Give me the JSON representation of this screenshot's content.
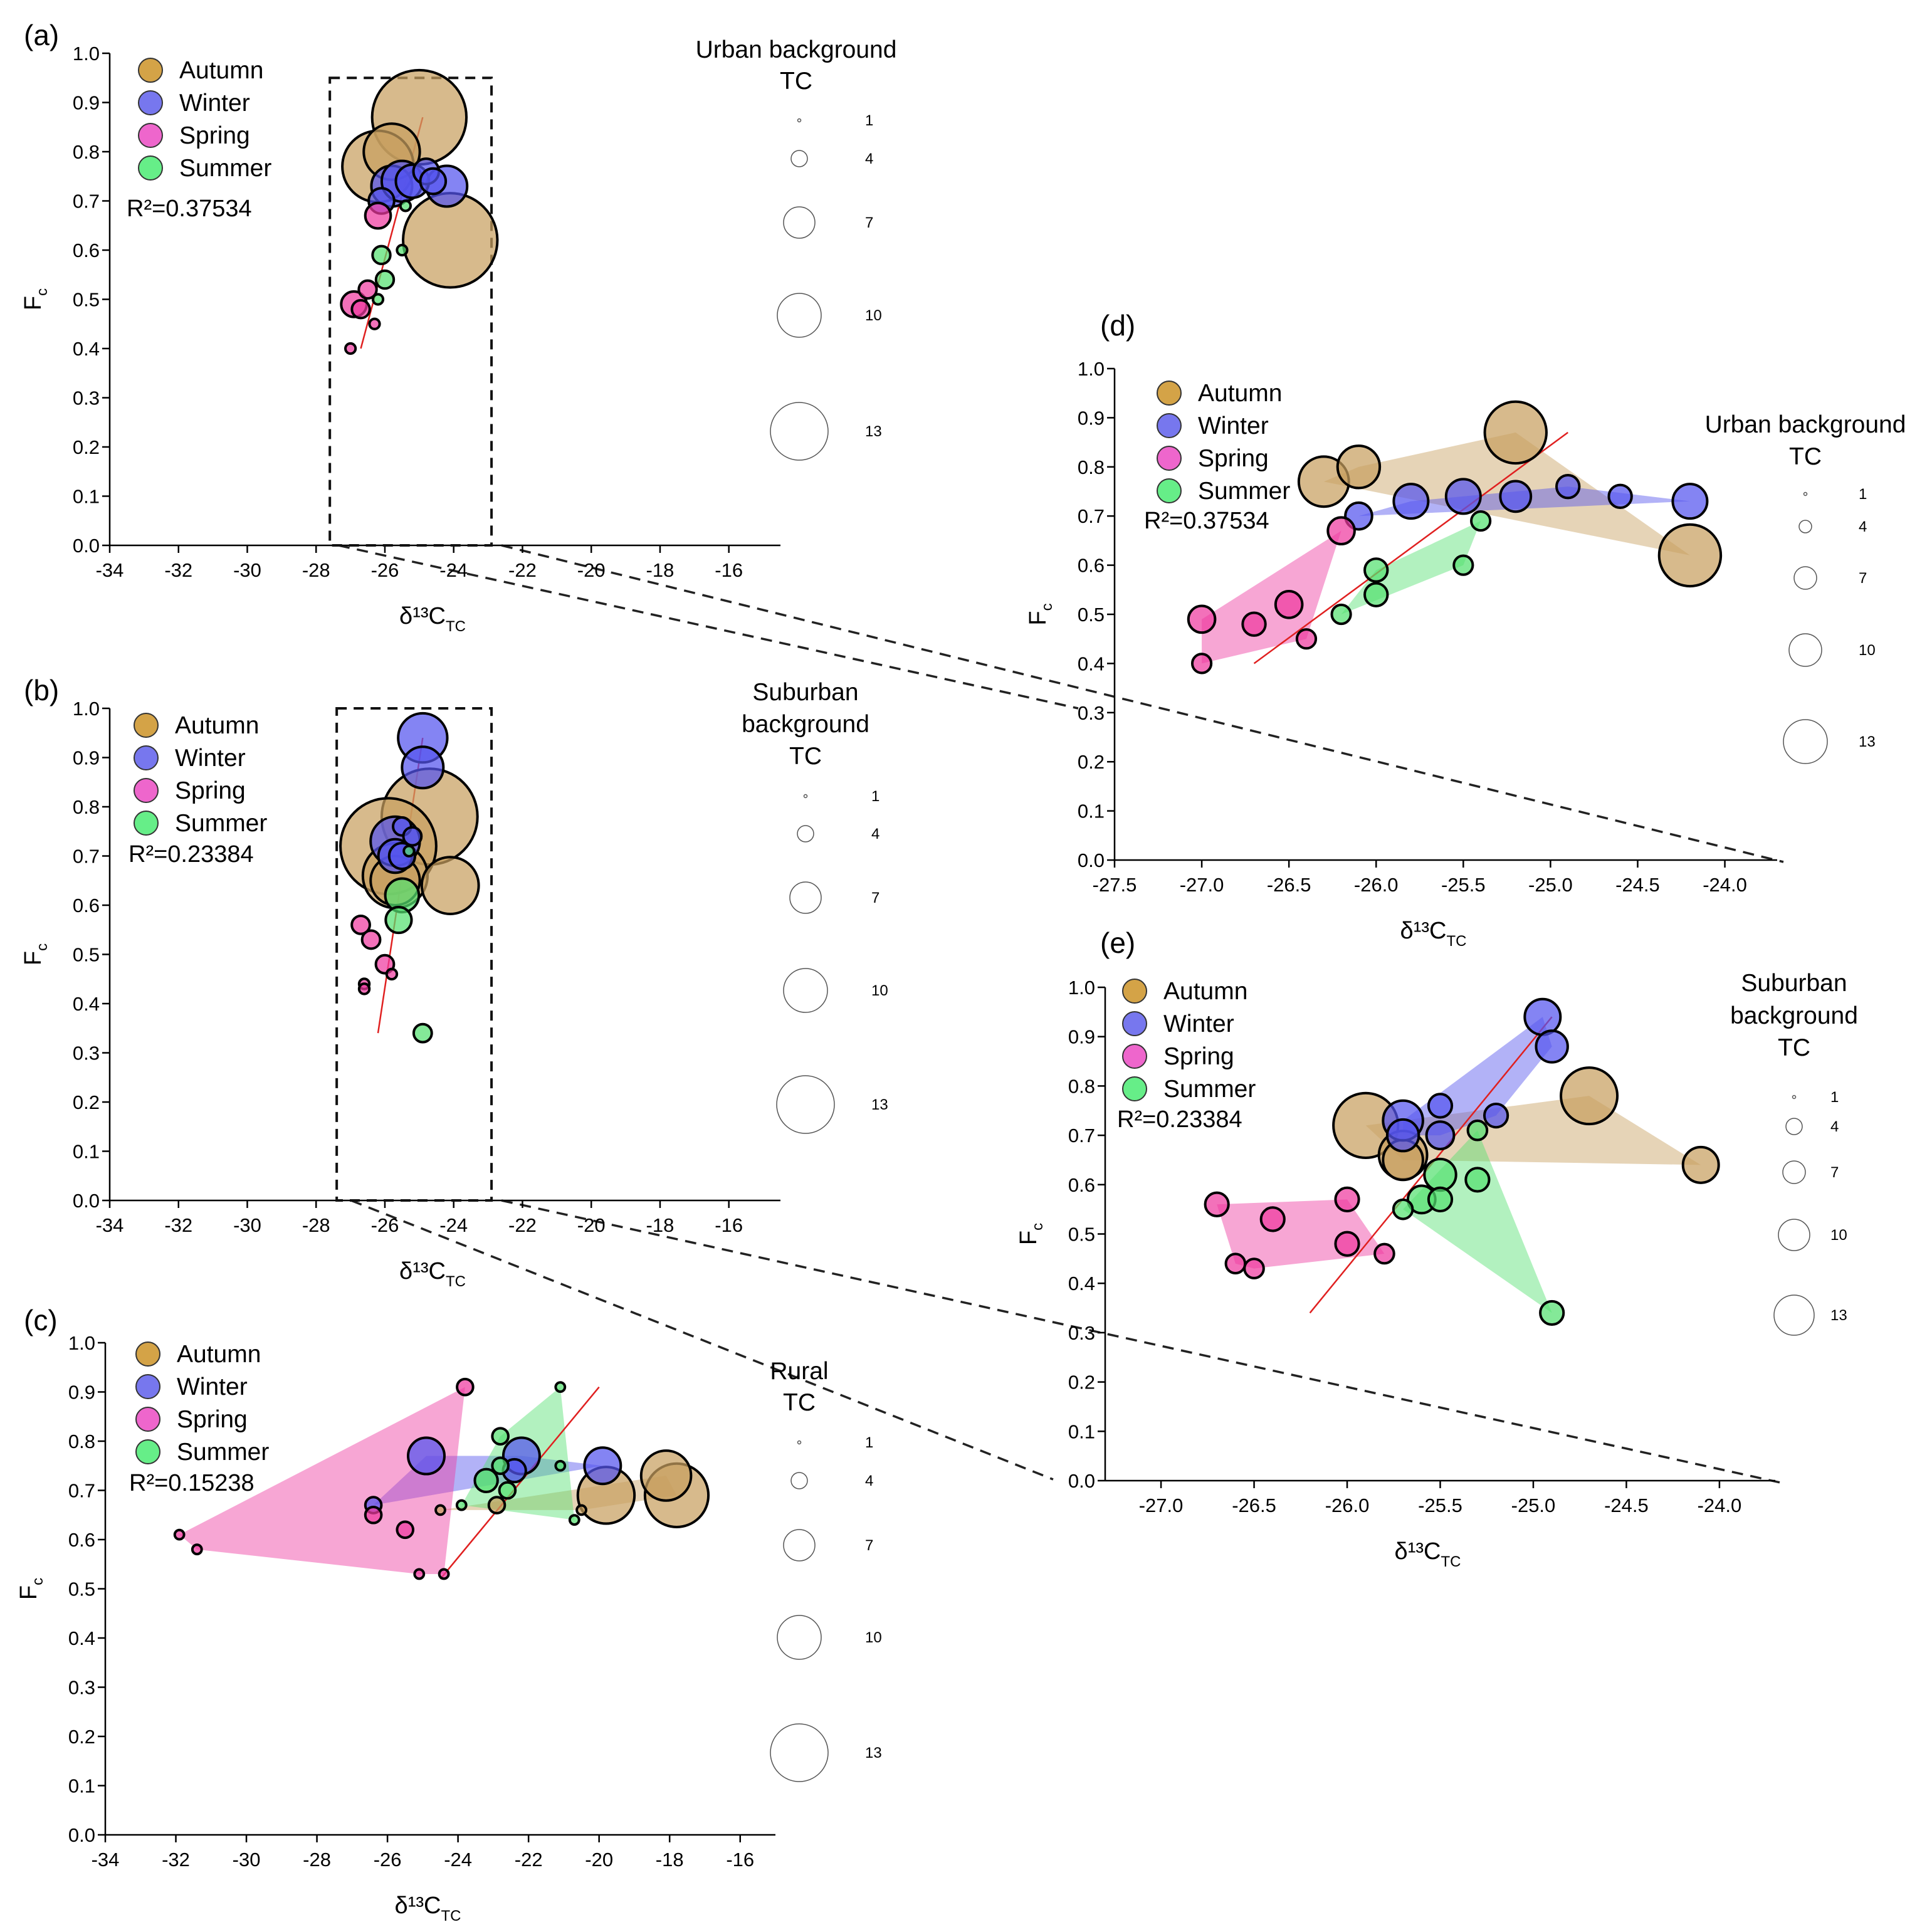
{
  "figure": {
    "panels": [
      {
        "id": "a",
        "label": "(a)",
        "r2_label": "R²=0.37534",
        "size_title": [
          "Urban background",
          "TC"
        ]
      },
      {
        "id": "b",
        "label": "(b)",
        "r2_label": "R²=0.23384",
        "size_title": [
          "Suburban",
          "background",
          "TC"
        ]
      },
      {
        "id": "c",
        "label": "(c)",
        "r2_label": "R²=0.15238",
        "size_title": [
          "Rural",
          "TC"
        ]
      },
      {
        "id": "d",
        "label": "(d)",
        "r2_label": "R²=0.37534",
        "size_title": [
          "Urban background",
          "TC"
        ]
      },
      {
        "id": "e",
        "label": "(e)",
        "r2_label": "R²=0.23384",
        "size_title": [
          "Suburban",
          "background",
          "TC"
        ]
      }
    ],
    "xlabel": "δ¹³C",
    "xlabel_sub": "TC",
    "ylabel": "F",
    "ylabel_sub": "c",
    "size_legend_values": [
      "1",
      "4",
      "7",
      "10",
      "13"
    ],
    "season_colors": {
      "Autumn": "#c8a060",
      "Winter": "#5555ee",
      "Spring": "#ee3aa0",
      "Summer": "#55e070"
    },
    "legend_fill_colors": {
      "Autumn": "#d4a347",
      "Winter": "#7777ee",
      "Spring": "#ee66cc",
      "Summer": "#66ee88"
    },
    "trend_color": "#e02020"
  },
  "chart_data": [
    {
      "panel": "a",
      "type": "scatter",
      "title": "",
      "xlabel": "δ13C TC",
      "ylabel": "Fc",
      "xlim": [
        -34,
        -14.5
      ],
      "ylim": [
        0,
        1.0
      ],
      "xticks": [
        -34,
        -32,
        -30,
        -28,
        -26,
        -24,
        -22,
        -20,
        -18,
        -16
      ],
      "yticks": [
        0.0,
        0.1,
        0.2,
        0.3,
        0.4,
        0.5,
        0.6,
        0.7,
        0.8,
        0.9,
        1.0
      ],
      "r2": 0.37534,
      "trend": [
        [
          -26.7,
          0.4
        ],
        [
          -24.9,
          0.87
        ]
      ],
      "zoom_box": {
        "x": [
          -27.6,
          -22.9
        ],
        "y": [
          0,
          0.95
        ]
      },
      "series": [
        {
          "name": "Autumn",
          "points": [
            [
              -25.0,
              0.87,
              12
            ],
            [
              -26.2,
              0.77,
              9
            ],
            [
              -25.8,
              0.8,
              7
            ],
            [
              -24.1,
              0.62,
              12
            ]
          ]
        },
        {
          "name": "Winter",
          "points": [
            [
              -26.1,
              0.7,
              3
            ],
            [
              -25.8,
              0.73,
              5
            ],
            [
              -25.5,
              0.74,
              5
            ],
            [
              -24.8,
              0.76,
              3
            ],
            [
              -25.2,
              0.74,
              4
            ],
            [
              -24.2,
              0.73,
              5
            ],
            [
              -24.6,
              0.74,
              3
            ]
          ]
        },
        {
          "name": "Spring",
          "points": [
            [
              -27.0,
              0.4,
              1
            ],
            [
              -26.9,
              0.49,
              3
            ],
            [
              -26.5,
              0.52,
              2
            ],
            [
              -26.7,
              0.48,
              2
            ],
            [
              -26.3,
              0.45,
              1
            ],
            [
              -26.2,
              0.67,
              3
            ]
          ]
        },
        {
          "name": "Summer",
          "points": [
            [
              -26.1,
              0.59,
              2
            ],
            [
              -26.0,
              0.54,
              2
            ],
            [
              -26.2,
              0.5,
              1
            ],
            [
              -25.5,
              0.6,
              1
            ],
            [
              -25.4,
              0.69,
              1
            ]
          ]
        }
      ]
    },
    {
      "panel": "b",
      "type": "scatter",
      "title": "",
      "xlabel": "δ13C TC",
      "ylabel": "Fc",
      "xlim": [
        -34,
        -14.5
      ],
      "ylim": [
        0,
        1.0
      ],
      "xticks": [
        -34,
        -32,
        -30,
        -28,
        -26,
        -24,
        -22,
        -20,
        -18,
        -16
      ],
      "yticks": [
        0.0,
        0.1,
        0.2,
        0.3,
        0.4,
        0.5,
        0.6,
        0.7,
        0.8,
        0.9,
        1.0
      ],
      "r2": 0.23384,
      "trend": [
        [
          -26.2,
          0.34
        ],
        [
          -24.9,
          0.94
        ]
      ],
      "zoom_box": {
        "x": [
          -27.4,
          -22.9
        ],
        "y": [
          0,
          1.0
        ]
      },
      "series": [
        {
          "name": "Autumn",
          "points": [
            [
              -24.7,
              0.78,
              12
            ],
            [
              -25.9,
              0.72,
              12
            ],
            [
              -25.7,
              0.66,
              8
            ],
            [
              -25.7,
              0.65,
              6
            ],
            [
              -24.1,
              0.64,
              7
            ]
          ]
        },
        {
          "name": "Winter",
          "points": [
            [
              -24.9,
              0.94,
              6
            ],
            [
              -24.9,
              0.88,
              5
            ],
            [
              -25.7,
              0.73,
              6
            ],
            [
              -25.7,
              0.7,
              4
            ],
            [
              -25.5,
              0.7,
              3
            ],
            [
              -25.5,
              0.76,
              2
            ],
            [
              -25.2,
              0.74,
              2
            ]
          ]
        },
        {
          "name": "Spring",
          "points": [
            [
              -26.7,
              0.56,
              2
            ],
            [
              -26.4,
              0.53,
              2
            ],
            [
              -26.6,
              0.44,
              1
            ],
            [
              -26.6,
              0.43,
              1
            ],
            [
              -26.0,
              0.48,
              2
            ],
            [
              -25.8,
              0.46,
              1
            ]
          ]
        },
        {
          "name": "Summer",
          "points": [
            [
              -25.6,
              0.57,
              3
            ],
            [
              -25.5,
              0.62,
              4
            ],
            [
              -25.3,
              0.71,
              1
            ],
            [
              -24.9,
              0.34,
              2
            ]
          ]
        }
      ]
    },
    {
      "panel": "c",
      "type": "scatter",
      "title": "",
      "xlabel": "δ13C TC",
      "ylabel": "Fc",
      "xlim": [
        -34,
        -15
      ],
      "ylim": [
        0,
        1.0
      ],
      "xticks": [
        -34,
        -32,
        -30,
        -28,
        -26,
        -24,
        -22,
        -20,
        -18,
        -16
      ],
      "yticks": [
        0.0,
        0.1,
        0.2,
        0.3,
        0.4,
        0.5,
        0.6,
        0.7,
        0.8,
        0.9,
        1.0
      ],
      "r2": 0.15238,
      "trend": [
        [
          -24.5,
          0.52
        ],
        [
          -20.0,
          0.91
        ]
      ],
      "series": [
        {
          "name": "Autumn",
          "points": [
            [
              -19.8,
              0.69,
              8
            ],
            [
              -18.1,
              0.73,
              7
            ],
            [
              -17.8,
              0.69,
              9
            ],
            [
              -22.9,
              0.67,
              2
            ],
            [
              -24.5,
              0.66,
              1
            ],
            [
              -20.5,
              0.66,
              1
            ]
          ]
        },
        {
          "name": "Winter",
          "points": [
            [
              -26.4,
              0.67,
              2
            ],
            [
              -24.9,
              0.77,
              5
            ],
            [
              -22.2,
              0.77,
              5
            ],
            [
              -19.9,
              0.75,
              5
            ],
            [
              -22.4,
              0.74,
              3
            ]
          ]
        },
        {
          "name": "Spring",
          "points": [
            [
              -31.9,
              0.61,
              1
            ],
            [
              -31.4,
              0.58,
              1
            ],
            [
              -23.8,
              0.91,
              2
            ],
            [
              -26.4,
              0.65,
              2
            ],
            [
              -25.5,
              0.62,
              2
            ],
            [
              -25.1,
              0.53,
              1
            ],
            [
              -24.4,
              0.53,
              1
            ]
          ]
        },
        {
          "name": "Summer",
          "points": [
            [
              -22.8,
              0.81,
              2
            ],
            [
              -21.1,
              0.91,
              1
            ],
            [
              -21.1,
              0.75,
              1
            ],
            [
              -22.8,
              0.75,
              2
            ],
            [
              -23.2,
              0.72,
              3
            ],
            [
              -22.6,
              0.7,
              2
            ],
            [
              -23.9,
              0.67,
              1
            ],
            [
              -20.7,
              0.64,
              1
            ]
          ]
        }
      ]
    },
    {
      "panel": "d",
      "type": "scatter",
      "title": "",
      "xlabel": "δ13C TC",
      "ylabel": "Fc",
      "xlim": [
        -27.5,
        -23.7
      ],
      "ylim": [
        0,
        1.0
      ],
      "xticks": [
        -27.5,
        -27.0,
        -26.5,
        -26.0,
        -25.5,
        -25.0,
        -24.5,
        -24.0
      ],
      "yticks": [
        0.0,
        0.1,
        0.2,
        0.3,
        0.4,
        0.5,
        0.6,
        0.7,
        0.8,
        0.9,
        1.0
      ],
      "r2": 0.37534,
      "trend": [
        [
          -26.7,
          0.4
        ],
        [
          -24.9,
          0.87
        ]
      ],
      "series": [
        {
          "name": "Autumn",
          "points": [
            [
              -25.2,
              0.87,
              12
            ],
            [
              -26.3,
              0.77,
              9
            ],
            [
              -26.1,
              0.8,
              7
            ],
            [
              -24.2,
              0.62,
              12
            ]
          ]
        },
        {
          "name": "Winter",
          "points": [
            [
              -26.1,
              0.7,
              3
            ],
            [
              -25.8,
              0.73,
              5
            ],
            [
              -25.5,
              0.74,
              5
            ],
            [
              -25.2,
              0.74,
              4
            ],
            [
              -24.9,
              0.76,
              2
            ],
            [
              -24.6,
              0.74,
              2
            ],
            [
              -24.2,
              0.73,
              5
            ]
          ]
        },
        {
          "name": "Spring",
          "points": [
            [
              -27.0,
              0.4,
              1
            ],
            [
              -27.0,
              0.49,
              3
            ],
            [
              -26.5,
              0.52,
              3
            ],
            [
              -26.7,
              0.48,
              2
            ],
            [
              -26.4,
              0.45,
              1
            ],
            [
              -26.2,
              0.67,
              3
            ]
          ]
        },
        {
          "name": "Summer",
          "points": [
            [
              -26.0,
              0.59,
              2
            ],
            [
              -26.0,
              0.54,
              2
            ],
            [
              -26.2,
              0.5,
              1
            ],
            [
              -25.5,
              0.6,
              1
            ],
            [
              -25.4,
              0.69,
              1
            ]
          ]
        }
      ]
    },
    {
      "panel": "e",
      "type": "scatter",
      "title": "",
      "xlabel": "δ13C TC",
      "ylabel": "Fc",
      "xlim": [
        -27.3,
        -23.7
      ],
      "ylim": [
        0,
        1.0
      ],
      "xticks": [
        -27.0,
        -26.5,
        -26.0,
        -25.5,
        -25.0,
        -24.5,
        -24.0
      ],
      "yticks": [
        0.0,
        0.1,
        0.2,
        0.3,
        0.4,
        0.5,
        0.6,
        0.7,
        0.8,
        0.9,
        1.0
      ],
      "r2": 0.23384,
      "trend": [
        [
          -26.2,
          0.34
        ],
        [
          -24.9,
          0.94
        ]
      ],
      "series": [
        {
          "name": "Autumn",
          "points": [
            [
              -25.9,
              0.72,
              12
            ],
            [
              -24.7,
              0.78,
              10
            ],
            [
              -25.7,
              0.66,
              8
            ],
            [
              -25.7,
              0.65,
              6
            ],
            [
              -24.1,
              0.64,
              5
            ]
          ]
        },
        {
          "name": "Winter",
          "points": [
            [
              -24.95,
              0.94,
              5
            ],
            [
              -24.9,
              0.88,
              4
            ],
            [
              -25.7,
              0.73,
              6
            ],
            [
              -25.7,
              0.7,
              4
            ],
            [
              -25.5,
              0.7,
              3
            ],
            [
              -25.5,
              0.76,
              2
            ],
            [
              -25.2,
              0.74,
              2
            ]
          ]
        },
        {
          "name": "Spring",
          "points": [
            [
              -26.7,
              0.56,
              2
            ],
            [
              -26.4,
              0.53,
              2
            ],
            [
              -26.6,
              0.44,
              1
            ],
            [
              -26.5,
              0.43,
              1
            ],
            [
              -26.0,
              0.48,
              2
            ],
            [
              -25.8,
              0.46,
              1
            ],
            [
              -26.0,
              0.57,
              2
            ]
          ]
        },
        {
          "name": "Summer",
          "points": [
            [
              -25.6,
              0.57,
              3
            ],
            [
              -25.5,
              0.62,
              4
            ],
            [
              -25.3,
              0.71,
              1
            ],
            [
              -25.5,
              0.57,
              2
            ],
            [
              -25.3,
              0.61,
              2
            ],
            [
              -24.9,
              0.34,
              2
            ],
            [
              -25.7,
              0.55,
              1
            ]
          ]
        }
      ]
    }
  ]
}
